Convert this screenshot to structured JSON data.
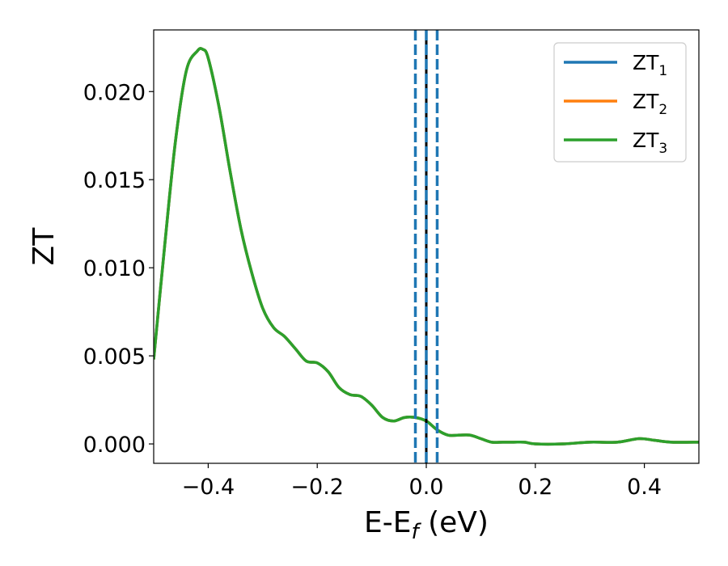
{
  "chart_data": {
    "type": "line",
    "xlabel": "E-E",
    "xlabel_sub": "f",
    "xlabel_unit": " (eV)",
    "ylabel": "ZT",
    "xlim": [
      -0.5,
      0.5
    ],
    "ylim": [
      -0.0011,
      0.0235
    ],
    "xticks": [
      -0.4,
      -0.2,
      0.0,
      0.2,
      0.4
    ],
    "xtick_labels": [
      "−0.4",
      "−0.2",
      "0.0",
      "0.2",
      "0.4"
    ],
    "yticks": [
      0.0,
      0.005,
      0.01,
      0.015,
      0.02
    ],
    "ytick_labels": [
      "0.000",
      "0.005",
      "0.010",
      "0.015",
      "0.020"
    ],
    "grid": false,
    "legend_position": "top-right",
    "series": [
      {
        "name": "ZT",
        "sub": "1",
        "color": "#1f77b4"
      },
      {
        "name": "ZT",
        "sub": "2",
        "color": "#ff7f0e"
      },
      {
        "name": "ZT",
        "sub": "3",
        "color": "#2ca02c"
      }
    ],
    "x": [
      -0.5,
      -0.48,
      -0.46,
      -0.44,
      -0.42,
      -0.41,
      -0.4,
      -0.38,
      -0.36,
      -0.34,
      -0.32,
      -0.3,
      -0.28,
      -0.26,
      -0.24,
      -0.22,
      -0.2,
      -0.18,
      -0.16,
      -0.14,
      -0.12,
      -0.1,
      -0.08,
      -0.06,
      -0.04,
      -0.02,
      0.0,
      0.02,
      0.04,
      0.06,
      0.08,
      0.1,
      0.12,
      0.14,
      0.16,
      0.18,
      0.2,
      0.25,
      0.3,
      0.35,
      0.39,
      0.42,
      0.45,
      0.5
    ],
    "y": [
      0.0048,
      0.0112,
      0.0172,
      0.0212,
      0.0223,
      0.0224,
      0.0219,
      0.0191,
      0.0155,
      0.0122,
      0.0097,
      0.0077,
      0.0066,
      0.0061,
      0.0054,
      0.0047,
      0.0046,
      0.0041,
      0.0032,
      0.0028,
      0.0027,
      0.0022,
      0.0015,
      0.0013,
      0.0015,
      0.0015,
      0.0013,
      0.0008,
      0.0005,
      0.0005,
      0.0005,
      0.0003,
      0.0001,
      0.0001,
      0.0001,
      0.0001,
      0.0,
      0.0,
      0.0001,
      0.0001,
      0.0003,
      0.0002,
      0.0001,
      0.0001
    ],
    "vertical_lines": [
      {
        "x": -0.02,
        "style": "dashed",
        "color": "#1f77b4"
      },
      {
        "x": 0.0,
        "style": "solid",
        "color": "#000000"
      },
      {
        "x": 0.0,
        "style": "dashed",
        "color": "#1f77b4"
      },
      {
        "x": 0.02,
        "style": "dashed",
        "color": "#1f77b4"
      }
    ]
  }
}
